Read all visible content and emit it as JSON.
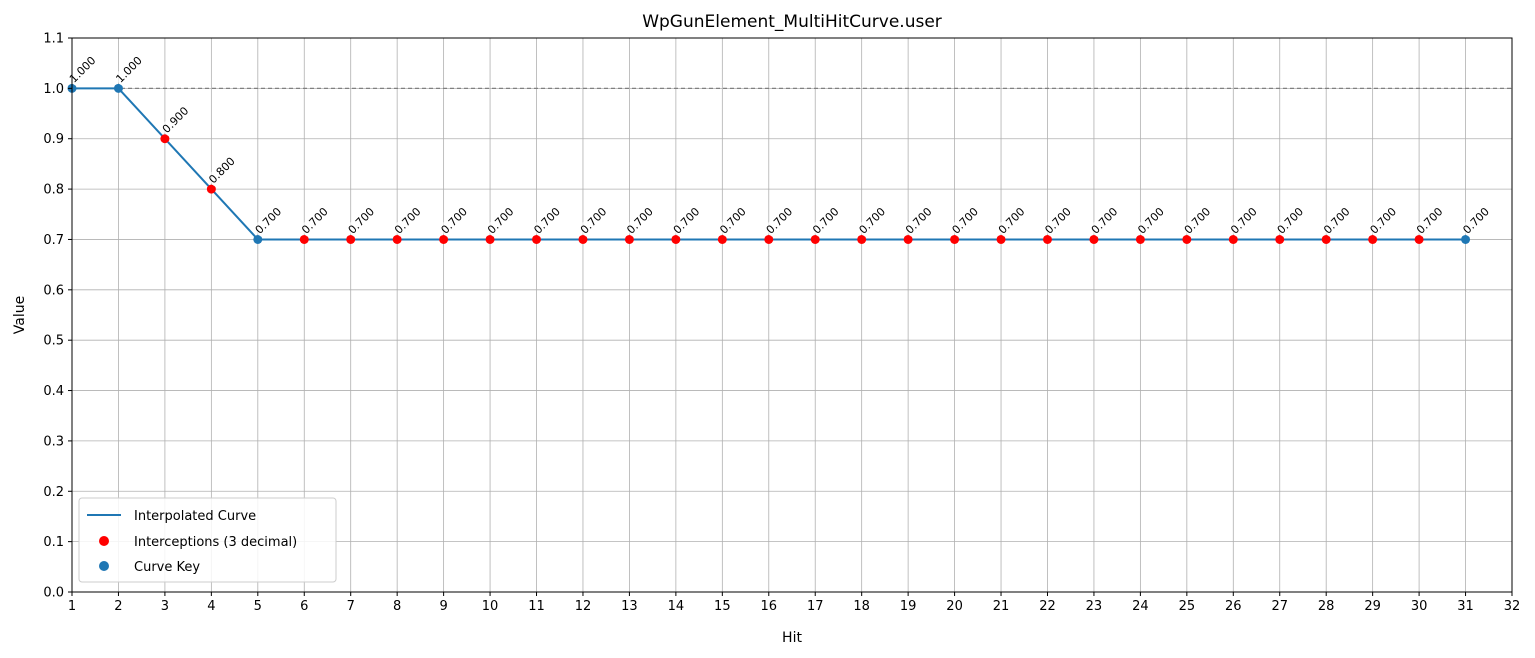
{
  "chart_data": {
    "type": "line",
    "title": "WpGunElement_MultiHitCurve.user",
    "xlabel": "Hit",
    "ylabel": "Value",
    "xlim": [
      1,
      32
    ],
    "ylim": [
      0,
      1.1
    ],
    "x_ticks": [
      1,
      2,
      3,
      4,
      5,
      6,
      7,
      8,
      9,
      10,
      11,
      12,
      13,
      14,
      15,
      16,
      17,
      18,
      19,
      20,
      21,
      22,
      23,
      24,
      25,
      26,
      27,
      28,
      29,
      30,
      31,
      32
    ],
    "y_ticks": [
      "0.0",
      "0.1",
      "0.2",
      "0.3",
      "0.4",
      "0.5",
      "0.6",
      "0.7",
      "0.8",
      "0.9",
      "1.0",
      "1.1"
    ],
    "grid": true,
    "legend_position": "lower-left",
    "reference_line": {
      "y": 1.0,
      "style": "dashed",
      "color": "#808080"
    },
    "series": [
      {
        "name": "Interpolated Curve",
        "kind": "line",
        "color": "#1f77b4",
        "x": [
          1,
          2,
          5,
          31
        ],
        "y": [
          1.0,
          1.0,
          0.7,
          0.7
        ]
      },
      {
        "name": "Interceptions (3 decimal)",
        "kind": "scatter",
        "color": "#ff0000",
        "x": [
          3,
          4,
          6,
          7,
          8,
          9,
          10,
          11,
          12,
          13,
          14,
          15,
          16,
          17,
          18,
          19,
          20,
          21,
          22,
          23,
          24,
          25,
          26,
          27,
          28,
          29,
          30
        ],
        "y": [
          0.9,
          0.8,
          0.7,
          0.7,
          0.7,
          0.7,
          0.7,
          0.7,
          0.7,
          0.7,
          0.7,
          0.7,
          0.7,
          0.7,
          0.7,
          0.7,
          0.7,
          0.7,
          0.7,
          0.7,
          0.7,
          0.7,
          0.7,
          0.7,
          0.7,
          0.7,
          0.7
        ]
      },
      {
        "name": "Curve Key",
        "kind": "scatter",
        "color": "#1f77b4",
        "x": [
          1,
          2,
          5,
          31
        ],
        "y": [
          1.0,
          1.0,
          0.7,
          0.7
        ]
      }
    ],
    "point_labels": [
      {
        "x": 1,
        "text": "1.000"
      },
      {
        "x": 2,
        "text": "1.000"
      },
      {
        "x": 3,
        "text": "0.900"
      },
      {
        "x": 4,
        "text": "0.800"
      },
      {
        "x": 5,
        "text": "0.700"
      },
      {
        "x": 6,
        "text": "0.700"
      },
      {
        "x": 7,
        "text": "0.700"
      },
      {
        "x": 8,
        "text": "0.700"
      },
      {
        "x": 9,
        "text": "0.700"
      },
      {
        "x": 10,
        "text": "0.700"
      },
      {
        "x": 11,
        "text": "0.700"
      },
      {
        "x": 12,
        "text": "0.700"
      },
      {
        "x": 13,
        "text": "0.700"
      },
      {
        "x": 14,
        "text": "0.700"
      },
      {
        "x": 15,
        "text": "0.700"
      },
      {
        "x": 16,
        "text": "0.700"
      },
      {
        "x": 17,
        "text": "0.700"
      },
      {
        "x": 18,
        "text": "0.700"
      },
      {
        "x": 19,
        "text": "0.700"
      },
      {
        "x": 20,
        "text": "0.700"
      },
      {
        "x": 21,
        "text": "0.700"
      },
      {
        "x": 22,
        "text": "0.700"
      },
      {
        "x": 23,
        "text": "0.700"
      },
      {
        "x": 24,
        "text": "0.700"
      },
      {
        "x": 25,
        "text": "0.700"
      },
      {
        "x": 26,
        "text": "0.700"
      },
      {
        "x": 27,
        "text": "0.700"
      },
      {
        "x": 28,
        "text": "0.700"
      },
      {
        "x": 29,
        "text": "0.700"
      },
      {
        "x": 30,
        "text": "0.700"
      },
      {
        "x": 31,
        "text": "0.700"
      }
    ]
  }
}
